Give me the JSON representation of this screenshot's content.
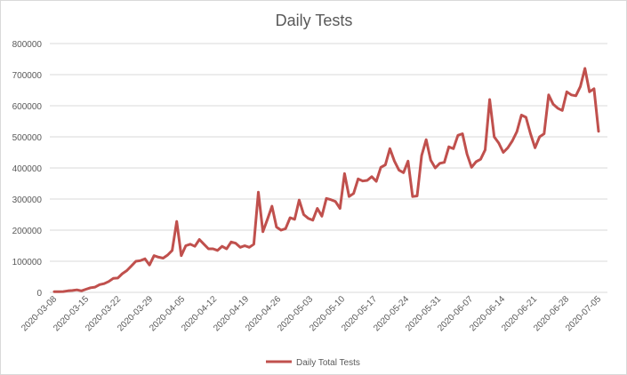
{
  "chart_data": {
    "type": "line",
    "title": "Daily Tests",
    "xlabel": "",
    "ylabel": "",
    "ylim": [
      0,
      800000
    ],
    "yticks": [
      0,
      100000,
      200000,
      300000,
      400000,
      500000,
      600000,
      700000,
      800000
    ],
    "ytick_labels": [
      "0",
      "100000",
      "200000",
      "300000",
      "400000",
      "500000",
      "600000",
      "700000",
      "800000"
    ],
    "xticks": [
      "2020-03-08",
      "2020-03-15",
      "2020-03-22",
      "2020-03-29",
      "2020-04-05",
      "2020-04-12",
      "2020-04-19",
      "2020-04-26",
      "2020-05-03",
      "2020-05-10",
      "2020-05-17",
      "2020-05-24",
      "2020-05-31",
      "2020-06-07",
      "2020-06-14",
      "2020-06-21",
      "2020-06-28",
      "2020-07-05"
    ],
    "grid": "horizontal",
    "legend_position": "bottom",
    "x_start": "2020-03-08",
    "x_end": "2020-07-05",
    "series": [
      {
        "name": "Daily Total Tests",
        "color": "#c0504d",
        "values": [
          2000,
          2000,
          2500,
          5000,
          6000,
          8000,
          5000,
          10000,
          15000,
          17000,
          25000,
          28000,
          35000,
          45000,
          46000,
          60000,
          70000,
          85000,
          100000,
          102000,
          108000,
          88000,
          118000,
          113000,
          110000,
          120000,
          135000,
          228000,
          118000,
          150000,
          155000,
          148000,
          170000,
          155000,
          140000,
          140000,
          135000,
          148000,
          140000,
          162000,
          158000,
          145000,
          150000,
          145000,
          155000,
          322000,
          195000,
          235000,
          277000,
          210000,
          200000,
          205000,
          240000,
          235000,
          297000,
          250000,
          238000,
          232000,
          270000,
          245000,
          302000,
          298000,
          292000,
          270000,
          382000,
          308000,
          318000,
          365000,
          358000,
          360000,
          372000,
          357000,
          402000,
          410000,
          462000,
          422000,
          393000,
          385000,
          422000,
          308000,
          310000,
          440000,
          491000,
          425000,
          400000,
          415000,
          418000,
          468000,
          462000,
          505000,
          510000,
          445000,
          402000,
          420000,
          428000,
          458000,
          620000,
          500000,
          480000,
          450000,
          465000,
          487000,
          517000,
          570000,
          563000,
          510000,
          465000,
          500000,
          510000,
          635000,
          605000,
          592000,
          585000,
          645000,
          635000,
          632000,
          662000,
          720000,
          645000,
          655000,
          518000
        ]
      }
    ]
  }
}
